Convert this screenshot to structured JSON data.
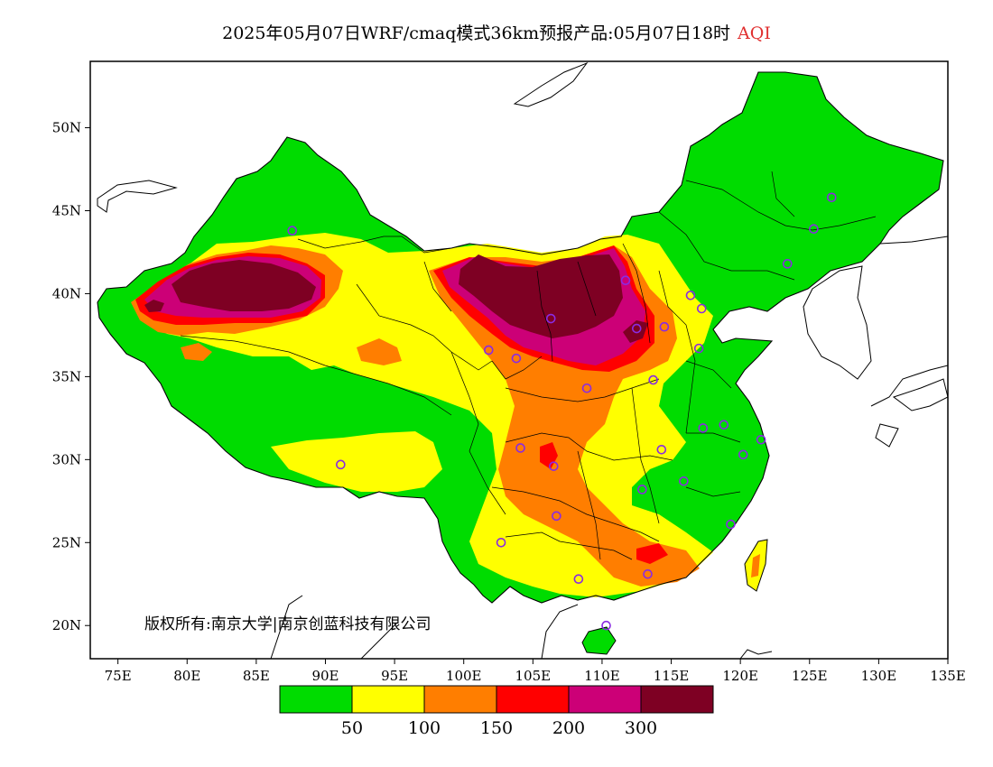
{
  "title": {
    "main": "2025年05月07日WRF/cmaq模式36km预报产品:05月07日18时",
    "variable": "AQI"
  },
  "map": {
    "lat_ticks": [
      "20N",
      "25N",
      "30N",
      "35N",
      "40N",
      "45N",
      "50N"
    ],
    "lon_ticks": [
      "75E",
      "80E",
      "85E",
      "90E",
      "95E",
      "100E",
      "105E",
      "110E",
      "115E",
      "120E",
      "125E",
      "130E",
      "135E"
    ],
    "lon_range": [
      73,
      135
    ],
    "lat_range": [
      18,
      54
    ],
    "copyright": "版权所有:南京大学|南京创蓝科技有限公司"
  },
  "legend": {
    "colors": [
      "#00dc00",
      "#ffff00",
      "#ff7e00",
      "#ff0000",
      "#cc0077",
      "#7e0023"
    ],
    "labels": [
      "50",
      "100",
      "150",
      "200",
      "300"
    ]
  },
  "stations": [
    [
      87.6,
      43.8
    ],
    [
      91.1,
      29.7
    ],
    [
      101.8,
      36.6
    ],
    [
      106.3,
      38.5
    ],
    [
      103.8,
      36.1
    ],
    [
      104.1,
      30.7
    ],
    [
      106.5,
      29.6
    ],
    [
      106.7,
      26.6
    ],
    [
      102.7,
      25.0
    ],
    [
      108.3,
      22.8
    ],
    [
      110.3,
      20.0
    ],
    [
      113.3,
      23.1
    ],
    [
      112.9,
      28.2
    ],
    [
      115.9,
      28.7
    ],
    [
      114.3,
      30.6
    ],
    [
      113.7,
      34.8
    ],
    [
      108.9,
      34.3
    ],
    [
      111.7,
      40.8
    ],
    [
      112.5,
      37.9
    ],
    [
      114.5,
      38.0
    ],
    [
      116.4,
      39.9
    ],
    [
      117.2,
      39.1
    ],
    [
      117.0,
      36.7
    ],
    [
      117.3,
      31.9
    ],
    [
      118.8,
      32.1
    ],
    [
      120.2,
      30.3
    ],
    [
      121.5,
      31.2
    ],
    [
      119.3,
      26.1
    ],
    [
      123.4,
      41.8
    ],
    [
      125.3,
      43.9
    ],
    [
      126.6,
      45.8
    ]
  ]
}
